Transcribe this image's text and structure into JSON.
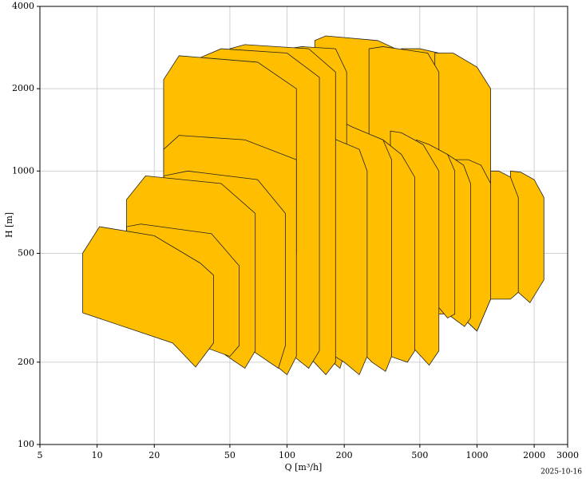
{
  "chart_data": {
    "type": "polygon",
    "xlabel": "Q [m³/h]",
    "ylabel": "H [m]",
    "date": "2025-10-16",
    "log_x": true,
    "log_y": true,
    "grid": true,
    "color": "#ffbf00",
    "edge_color": "#222222",
    "xlim": [
      5,
      3000
    ],
    "ylim": [
      100,
      4000
    ],
    "xticks": [
      5,
      10,
      20,
      50,
      100,
      200,
      500,
      1000,
      2000,
      3000
    ],
    "yticks": [
      100,
      200,
      500,
      1000,
      2000,
      4000
    ],
    "series": [
      {
        "x": [
          400,
          400,
          500,
          800,
          1000,
          1000,
          800
        ],
        "values": [
          400,
          2800,
          2800,
          2600,
          2000,
          700,
          600
        ]
      },
      {
        "x": [
          600,
          600,
          750,
          1000,
          1180,
          1180,
          1000,
          800
        ],
        "values": [
          400,
          2700,
          2700,
          2400,
          2000,
          340,
          260,
          300
        ]
      },
      {
        "x": [
          1500,
          1500,
          1700,
          2000,
          2250,
          2250,
          1900,
          1650
        ],
        "values": [
          350,
          1000,
          990,
          930,
          800,
          400,
          330,
          360
        ]
      },
      {
        "x": [
          1180,
          1180,
          1300,
          1500,
          1650,
          1650,
          1500,
          1300
        ],
        "values": [
          340,
          1000,
          1000,
          950,
          800,
          360,
          340,
          340
        ]
      },
      {
        "x": [
          700,
          700,
          900,
          1050,
          1180,
          1180,
          1000,
          800
        ],
        "values": [
          400,
          1100,
          1100,
          1050,
          900,
          340,
          260,
          300
        ]
      },
      {
        "x": [
          140,
          140,
          160,
          300,
          470,
          470,
          400,
          250
        ],
        "values": [
          1000,
          3000,
          3120,
          3000,
          2600,
          500,
          450,
          700
        ]
      },
      {
        "x": [
          270,
          270,
          320,
          550,
          630,
          630,
          500
        ],
        "values": [
          600,
          2800,
          2850,
          2700,
          2300,
          800,
          700
        ]
      },
      {
        "x": [
          550,
          550,
          700,
          850,
          925,
          925,
          860,
          700
        ],
        "values": [
          300,
          1200,
          1150,
          1050,
          900,
          290,
          270,
          300
        ]
      },
      {
        "x": [
          480,
          480,
          560,
          700,
          764,
          764,
          700,
          600
        ],
        "values": [
          300,
          1300,
          1250,
          1150,
          1000,
          300,
          290,
          330
        ]
      },
      {
        "x": [
          350,
          350,
          400,
          520,
          630,
          630,
          560,
          450
        ],
        "values": [
          300,
          1400,
          1380,
          1250,
          1000,
          220,
          195,
          230
        ]
      },
      {
        "x": [
          280,
          280,
          320,
          400,
          470,
          470,
          430,
          350
        ],
        "values": [
          250,
          1350,
          1300,
          1150,
          950,
          220,
          200,
          210
        ]
      },
      {
        "x": [
          200,
          200,
          220,
          320,
          355,
          355,
          330,
          280,
          230
        ],
        "values": [
          250,
          1500,
          1450,
          1300,
          1100,
          210,
          185,
          200,
          230
        ]
      },
      {
        "x": [
          100,
          100,
          120,
          180,
          206,
          206,
          190,
          160,
          120
        ],
        "values": [
          900,
          2800,
          2850,
          2800,
          2300,
          230,
          190,
          210,
          400
        ]
      },
      {
        "x": [
          140,
          140,
          160,
          240,
          264,
          264,
          240,
          200,
          160
        ],
        "values": [
          250,
          1300,
          1350,
          1200,
          1000,
          210,
          180,
          200,
          220
        ]
      },
      {
        "x": [
          50,
          50,
          60,
          130,
          180,
          180,
          160,
          130,
          80
        ],
        "values": [
          1500,
          2800,
          2900,
          2800,
          2300,
          200,
          180,
          210,
          600
        ]
      },
      {
        "x": [
          35,
          35,
          45,
          100,
          148,
          148,
          130,
          100,
          60
        ],
        "values": [
          1200,
          2600,
          2800,
          2700,
          2200,
          220,
          190,
          220,
          400
        ]
      },
      {
        "x": [
          22.4,
          22.4,
          27,
          70,
          112,
          112,
          80,
          40
        ],
        "values": [
          1000,
          2160,
          2640,
          2500,
          2000,
          500,
          500,
          600
        ]
      },
      {
        "x": [
          22.4,
          22.4,
          27,
          60,
          112,
          112,
          100,
          70,
          40
        ],
        "values": [
          500,
          1200,
          1350,
          1300,
          1100,
          210,
          180,
          220,
          260
        ]
      },
      {
        "x": [
          22.4,
          22.4,
          30,
          70,
          98,
          98,
          90,
          60,
          40
        ],
        "values": [
          250,
          960,
          1000,
          930,
          700,
          230,
          190,
          230,
          260
        ]
      },
      {
        "x": [
          14.3,
          14.3,
          18,
          45,
          68,
          68,
          60,
          40,
          25
        ],
        "values": [
          300,
          787,
          960,
          900,
          700,
          220,
          190,
          230,
          260
        ]
      },
      {
        "x": [
          14.3,
          14.3,
          17,
          40,
          56,
          56,
          50,
          35,
          20
        ],
        "values": [
          268,
          626,
          640,
          590,
          450,
          230,
          210,
          230,
          268
        ]
      },
      {
        "x": [
          8.4,
          8.4,
          10.3,
          20,
          35,
          41,
          41,
          33,
          25
        ],
        "values": [
          303,
          501,
          626,
          580,
          460,
          416,
          235,
          192,
          235
        ]
      }
    ]
  }
}
